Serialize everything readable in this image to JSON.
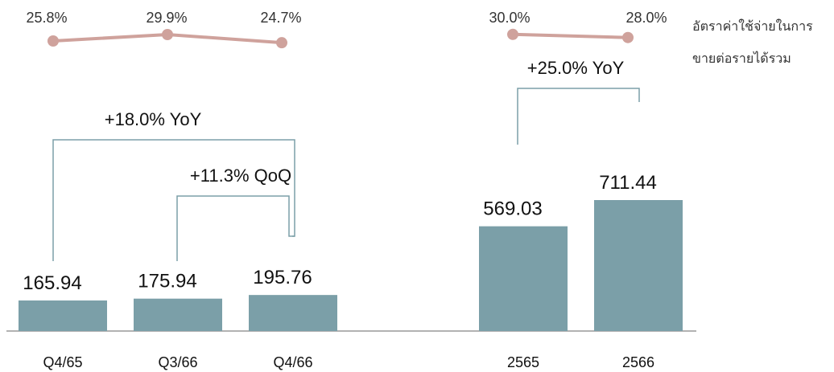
{
  "chart_data": {
    "type": "bar",
    "categories": [
      "Q4/65",
      "Q3/66",
      "Q4/66",
      "2565",
      "2566"
    ],
    "values": [
      165.94,
      175.94,
      195.76,
      569.03,
      711.44
    ],
    "value_labels": [
      "165.94",
      "175.94",
      "195.76",
      "569.03",
      "711.44"
    ],
    "ratio_series": {
      "name_lines": [
        "อัตราค่าใช้จ่ายในการ",
        "ขายต่อรายได้รวม"
      ],
      "groups": [
        {
          "categories": [
            "Q4/65",
            "Q3/66",
            "Q4/66"
          ],
          "values": [
            25.8,
            29.9,
            24.7
          ],
          "labels": [
            "25.8%",
            "29.9%",
            "24.7%"
          ]
        },
        {
          "categories": [
            "2565",
            "2566"
          ],
          "values": [
            30.0,
            28.0
          ],
          "labels": [
            "30.0%",
            "28.0%"
          ]
        }
      ]
    },
    "annotations": [
      {
        "text": "+18.0% YoY",
        "from": "Q4/65",
        "to": "Q4/66"
      },
      {
        "text": "+11.3% QoQ",
        "from": "Q3/66",
        "to": "Q4/66"
      },
      {
        "text": "+25.0% YoY",
        "from": "2565",
        "to": "2566"
      }
    ],
    "colors": {
      "bar": "#7b9fa8",
      "line": "#cfa29c",
      "bracket": "#7b9fa8",
      "axis": "#999999"
    }
  }
}
